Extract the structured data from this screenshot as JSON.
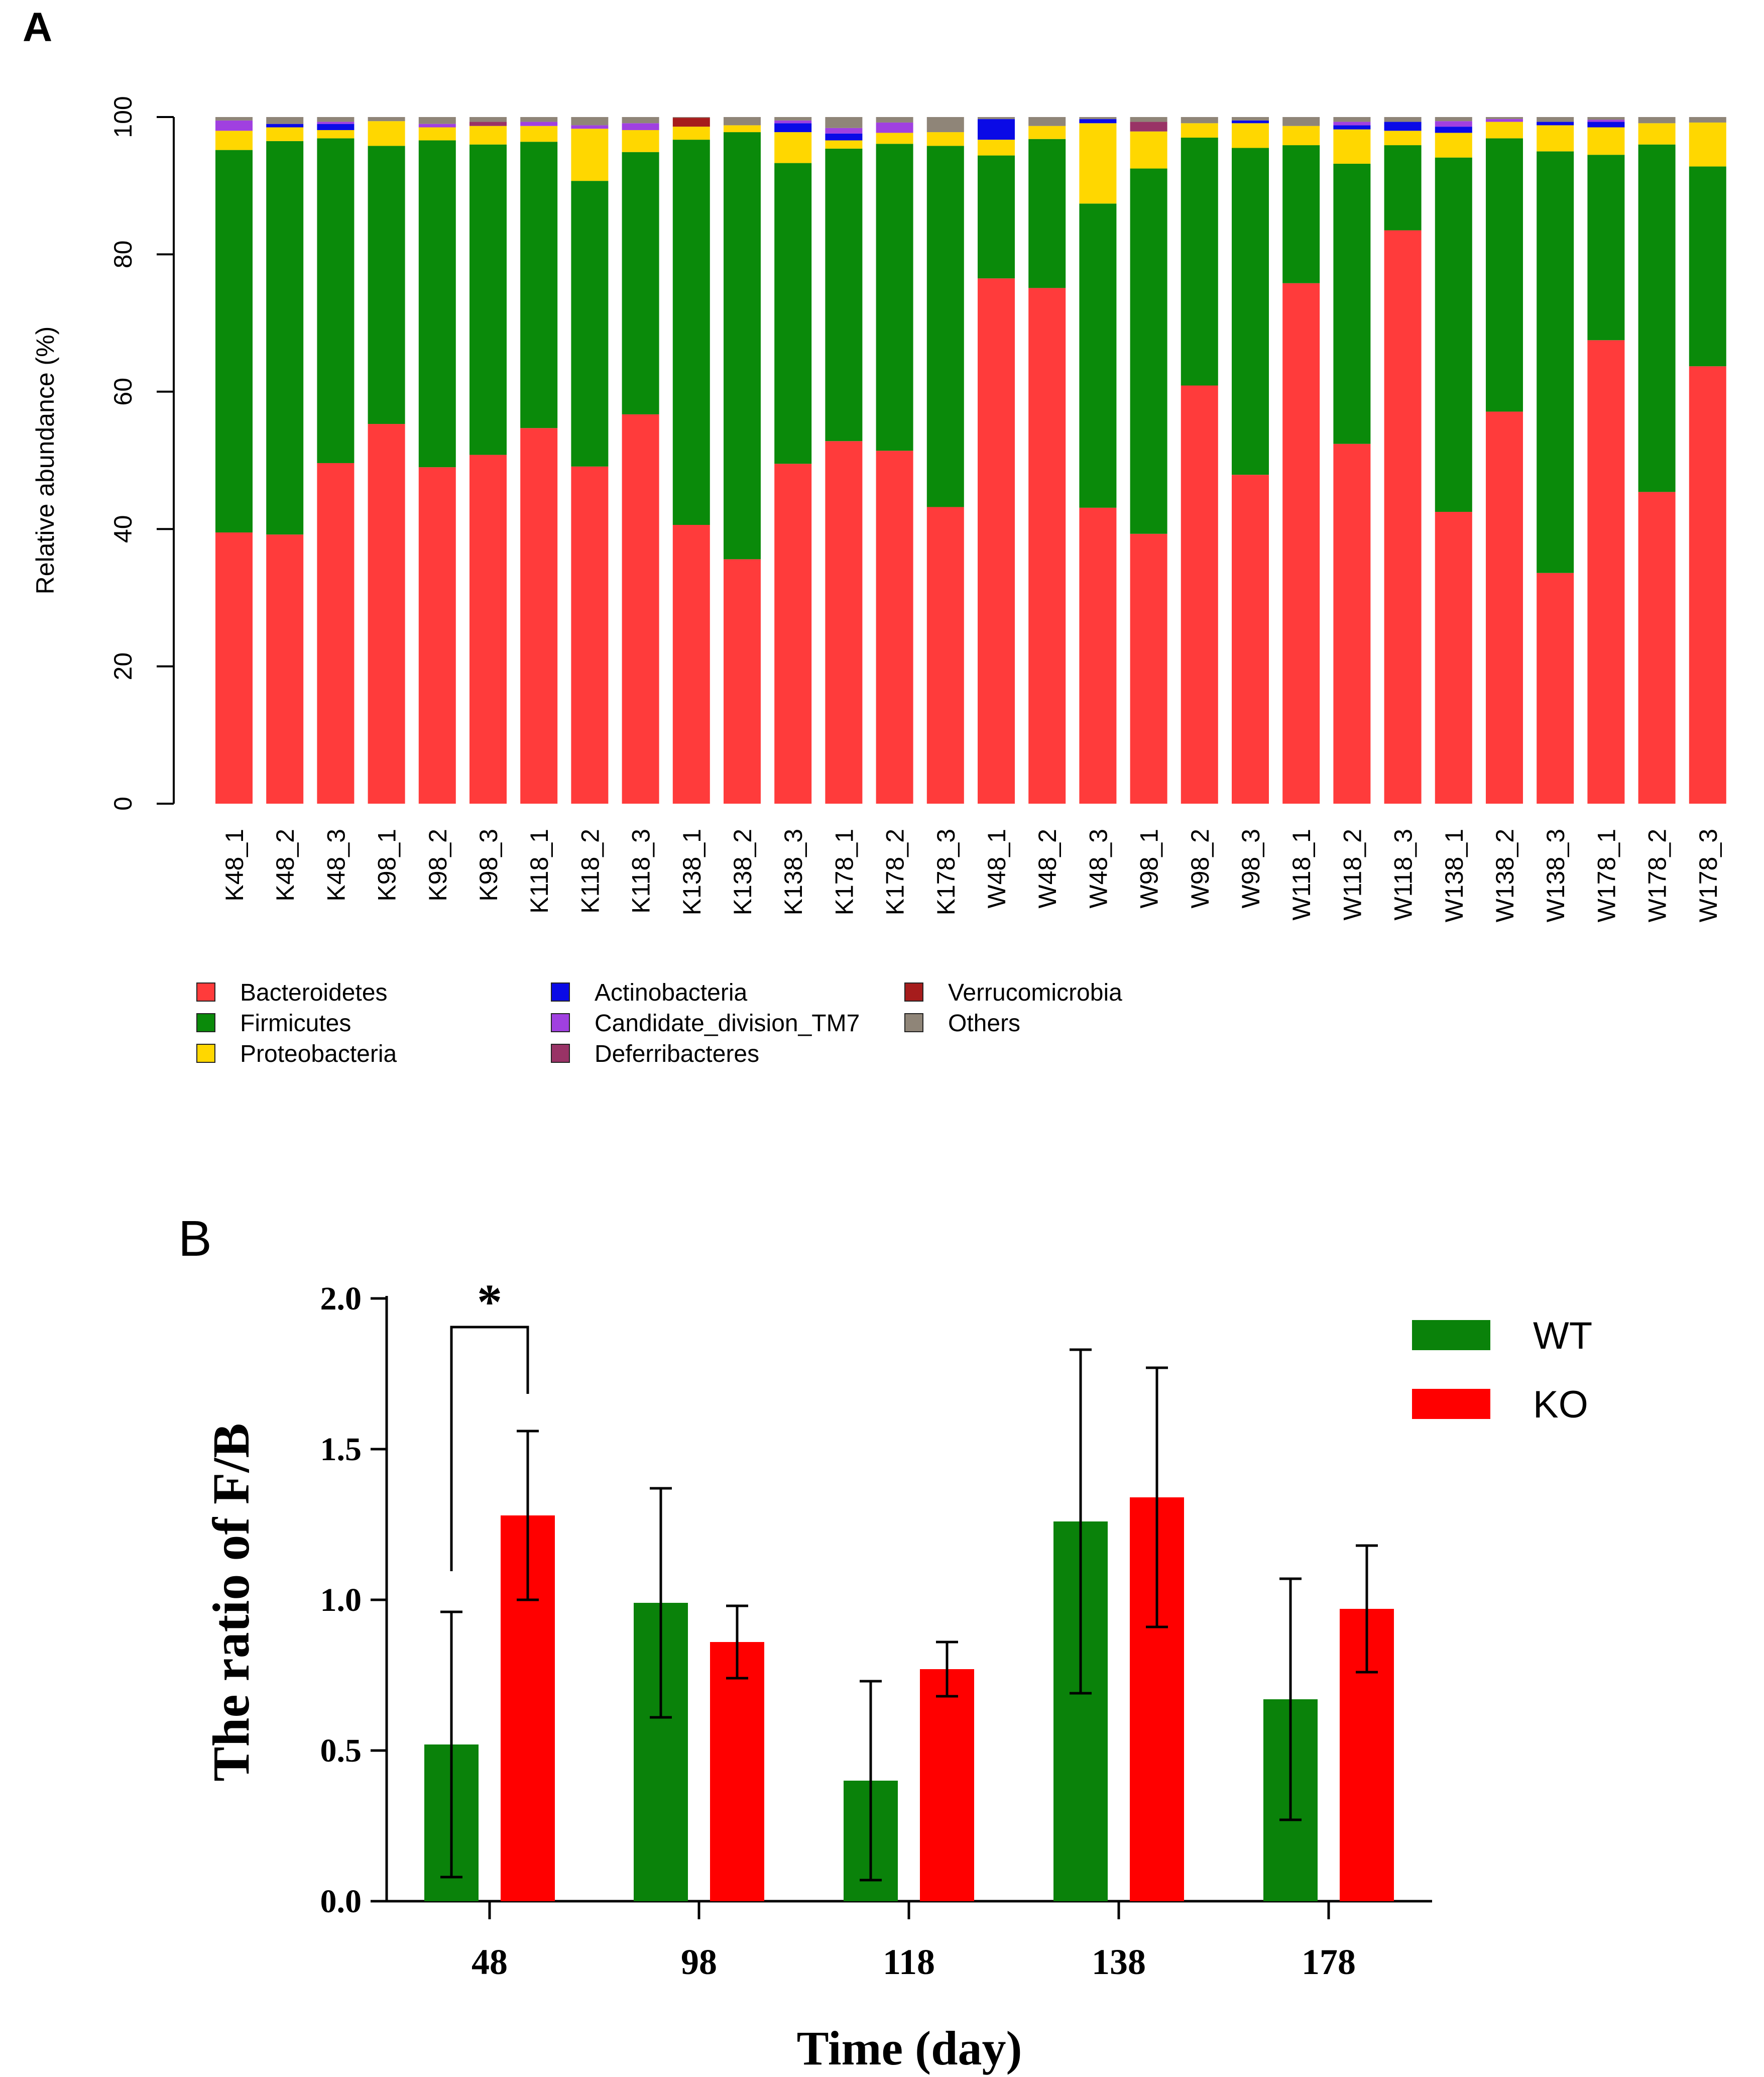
{
  "panel_labels": {
    "a": "A",
    "b": "B"
  },
  "chart_data": [
    {
      "id": "A",
      "type": "bar",
      "stacked": true,
      "ylabel": "Relative abundance (%)",
      "ylim": [
        0,
        100
      ],
      "yticks": [
        "0",
        "20",
        "40",
        "60",
        "80",
        "100"
      ],
      "categories": [
        "K48_1",
        "K48_2",
        "K48_3",
        "K98_1",
        "K98_2",
        "K98_3",
        "K118_1",
        "K118_2",
        "K118_3",
        "K138_1",
        "K138_2",
        "K138_3",
        "K178_1",
        "K178_2",
        "K178_3",
        "W48_1",
        "W48_2",
        "W48_3",
        "W98_1",
        "W98_2",
        "W98_3",
        "W118_1",
        "W118_2",
        "W118_3",
        "W138_1",
        "W138_2",
        "W138_3",
        "W178_1",
        "W178_2",
        "W178_3"
      ],
      "legend_position": "bottom",
      "series": [
        {
          "name": "Bacteroidetes",
          "color": "#FF3B3B",
          "values": [
            39.5,
            39.2,
            49.6,
            55.3,
            49.0,
            50.8,
            54.7,
            49.1,
            56.7,
            40.6,
            35.6,
            49.5,
            52.8,
            51.4,
            43.2,
            76.5,
            75.1,
            43.1,
            39.3,
            60.9,
            47.9,
            75.8,
            52.4,
            83.5,
            42.5,
            57.1,
            33.6,
            67.5,
            45.4,
            63.7
          ]
        },
        {
          "name": "Firmicutes",
          "color": "#0A8A0A",
          "values": [
            55.7,
            57.3,
            47.3,
            40.5,
            47.6,
            45.2,
            41.7,
            41.6,
            38.2,
            56.1,
            62.2,
            43.8,
            42.6,
            44.7,
            52.6,
            17.9,
            21.7,
            44.3,
            53.2,
            36.1,
            47.6,
            20.1,
            40.8,
            12.4,
            51.6,
            39.8,
            61.4,
            27.0,
            50.6,
            29.1
          ]
        },
        {
          "name": "Proteobacteria",
          "color": "#FFD700",
          "values": [
            2.8,
            2.0,
            1.2,
            3.6,
            1.9,
            2.7,
            2.3,
            7.6,
            3.2,
            1.9,
            1.0,
            4.5,
            1.2,
            1.6,
            2.0,
            2.3,
            1.9,
            11.7,
            5.4,
            2.1,
            3.6,
            2.8,
            5.0,
            2.1,
            3.6,
            2.4,
            3.8,
            4.0,
            3.1,
            6.4
          ]
        },
        {
          "name": "Actinobacteria",
          "color": "#0A0AE6",
          "values": [
            0,
            0.5,
            0.9,
            0,
            0,
            0,
            0,
            0,
            0,
            0,
            0,
            1.3,
            1.0,
            0,
            0,
            3.0,
            0,
            0.6,
            0,
            0,
            0.4,
            0,
            0.6,
            1.3,
            0.9,
            0,
            0.5,
            0.8,
            0,
            0
          ]
        },
        {
          "name": "Candidate_division_TM7",
          "color": "#A040E0",
          "values": [
            1.5,
            0,
            0.3,
            0,
            0.5,
            0,
            0.6,
            0.5,
            1.0,
            0,
            0,
            0.4,
            0.8,
            1.5,
            0,
            0,
            0,
            0,
            0,
            0,
            0,
            0,
            0.5,
            0,
            0.8,
            0.4,
            0,
            0.3,
            0,
            0
          ]
        },
        {
          "name": "Deferribacteres",
          "color": "#993366",
          "values": [
            0,
            0,
            0,
            0,
            0,
            0.6,
            0,
            0,
            0,
            0,
            0,
            0,
            0,
            0,
            0,
            0,
            0,
            0,
            1.4,
            0,
            0,
            0,
            0,
            0,
            0,
            0,
            0,
            0,
            0,
            0
          ]
        },
        {
          "name": "Verrucomicrobia",
          "color": "#A61C1C",
          "values": [
            0,
            0,
            0,
            0,
            0,
            0,
            0,
            0,
            0,
            1.3,
            0,
            0,
            0,
            0,
            0,
            0,
            0,
            0,
            0,
            0,
            0,
            0,
            0,
            0,
            0,
            0,
            0,
            0,
            0,
            0
          ]
        },
        {
          "name": "Others",
          "color": "#8F8578",
          "values": [
            0.5,
            1.0,
            0.7,
            0.6,
            1.0,
            0.7,
            0.7,
            1.2,
            0.9,
            0.1,
            1.2,
            0.5,
            1.6,
            0.8,
            2.2,
            0.3,
            1.3,
            0.3,
            0.7,
            0.9,
            0.5,
            1.3,
            0.7,
            0.7,
            0.6,
            0.3,
            0.7,
            0.4,
            0.9,
            0.8
          ]
        }
      ]
    },
    {
      "id": "B",
      "type": "bar",
      "xlabel": "Time (day)",
      "ylabel": "The ratio of F/B",
      "ylim": [
        0,
        2.0
      ],
      "yticks": [
        "0.0",
        "0.5",
        "1.0",
        "1.5",
        "2.0"
      ],
      "categories": [
        "48",
        "98",
        "118",
        "138",
        "178"
      ],
      "legend_position": "top-right",
      "series": [
        {
          "name": "WT",
          "color": "#0A820A",
          "values": [
            0.52,
            0.99,
            0.4,
            1.26,
            0.67
          ],
          "error": [
            0.44,
            0.38,
            0.33,
            0.57,
            0.4
          ]
        },
        {
          "name": "KO",
          "color": "#FF0000",
          "values": [
            1.28,
            0.86,
            0.77,
            1.34,
            0.97
          ],
          "error": [
            0.28,
            0.12,
            0.09,
            0.43,
            0.21
          ]
        }
      ],
      "annotations": [
        {
          "text": "*",
          "between": [
            "WT 48",
            "KO 48"
          ]
        }
      ]
    }
  ]
}
